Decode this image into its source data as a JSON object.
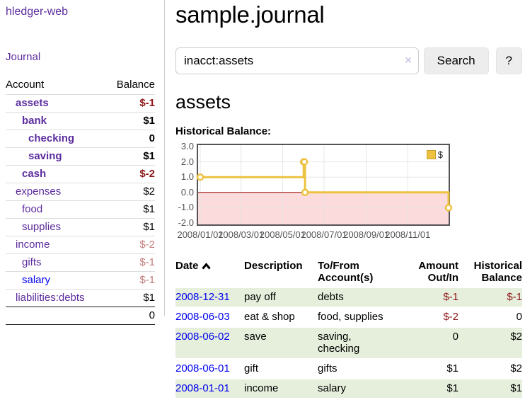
{
  "sidebar": {
    "app_title": "hledger-web",
    "journal_link": "Journal",
    "accounts_table": {
      "headers": {
        "account": "Account",
        "balance": "Balance"
      },
      "rows": [
        {
          "label": "assets",
          "balance": "$-1"
        },
        {
          "label": "bank",
          "balance": "$1"
        },
        {
          "label": "checking",
          "balance": "0"
        },
        {
          "label": "saving",
          "balance": "$1"
        },
        {
          "label": "cash",
          "balance": "$-2"
        },
        {
          "label": "expenses",
          "balance": "$2"
        },
        {
          "label": "food",
          "balance": "$1"
        },
        {
          "label": "supplies",
          "balance": "$1"
        },
        {
          "label": "income",
          "balance": "$-2"
        },
        {
          "label": "gifts",
          "balance": "$-1"
        },
        {
          "label": "salary",
          "balance": "$-1"
        },
        {
          "label": "liabilities:debts",
          "balance": "$1"
        }
      ],
      "total": "0"
    }
  },
  "header": {
    "title": "sample.journal"
  },
  "search": {
    "query": "inacct:assets",
    "clear_icon": "×",
    "search_button": "Search",
    "help_button": "?"
  },
  "account_page": {
    "title": "assets",
    "chart_label": "Historical Balance:"
  },
  "chart_data": {
    "type": "line",
    "title": "Historical Balance",
    "step": true,
    "series": [
      {
        "name": "$",
        "color": "#edc240",
        "points": [
          [
            "2008-01-01",
            1
          ],
          [
            "2008-06-01",
            2
          ],
          [
            "2008-06-02",
            2
          ],
          [
            "2008-06-03",
            0
          ],
          [
            "2008-12-31",
            -1
          ]
        ]
      }
    ],
    "x_range": [
      "2008-01-01",
      "2008-12-31"
    ],
    "ylim": [
      -2,
      3
    ],
    "y_ticks": [
      {
        "label": "3.0",
        "v": 3
      },
      {
        "label": "2.0",
        "v": 2
      },
      {
        "label": "1.0",
        "v": 1
      },
      {
        "label": "0.0",
        "v": 0
      },
      {
        "label": "-1.0",
        "v": -1
      },
      {
        "label": "-2.0",
        "v": -2
      }
    ],
    "x_ticks": [
      {
        "label": "2008/01/01",
        "date": "2008-01-01"
      },
      {
        "label": "2008/03/01",
        "date": "2008-03-01"
      },
      {
        "label": "2008/05/01",
        "date": "2008-05-01"
      },
      {
        "label": "2008/07/01",
        "date": "2008-07-01"
      },
      {
        "label": "2008/09/01",
        "date": "2008-09-01"
      },
      {
        "label": "2008/11/01",
        "date": "2008-11-01"
      }
    ],
    "legend": {
      "position": "top-right",
      "label": "$"
    },
    "grid": true,
    "negative_region_color": "#fbdbdb",
    "zero_line_color": "#990000"
  },
  "register": {
    "headers": {
      "date": "Date",
      "description": "Description",
      "accounts": "To/From Account(s)",
      "amount": "Amount Out/In",
      "balance": "Historical Balance"
    },
    "rows": [
      {
        "date": "2008-12-31",
        "description": "pay off",
        "accounts": "debts",
        "amount": "$-1",
        "balance": "$-1"
      },
      {
        "date": "2008-06-03",
        "description": "eat & shop",
        "accounts": "food, supplies",
        "amount": "$-2",
        "balance": "0"
      },
      {
        "date": "2008-06-02",
        "description": "save",
        "accounts": "saving,\nchecking",
        "amount": "0",
        "balance": "$2"
      },
      {
        "date": "2008-06-01",
        "description": "gift",
        "accounts": "gifts",
        "amount": "$1",
        "balance": "$2"
      },
      {
        "date": "2008-01-01",
        "description": "income",
        "accounts": "salary",
        "amount": "$1",
        "balance": "$1"
      }
    ]
  },
  "colors": {
    "link_purple": "#5c2d9e",
    "link_blue": "#0000ee",
    "negative": "#8e1616",
    "negative_soft": "#c47d7d",
    "row_stripe_green": "#e5efdc",
    "chart_line_gold": "#edc240",
    "chart_negative_bg": "#fbdbdb",
    "chart_zero_line": "#990000"
  }
}
